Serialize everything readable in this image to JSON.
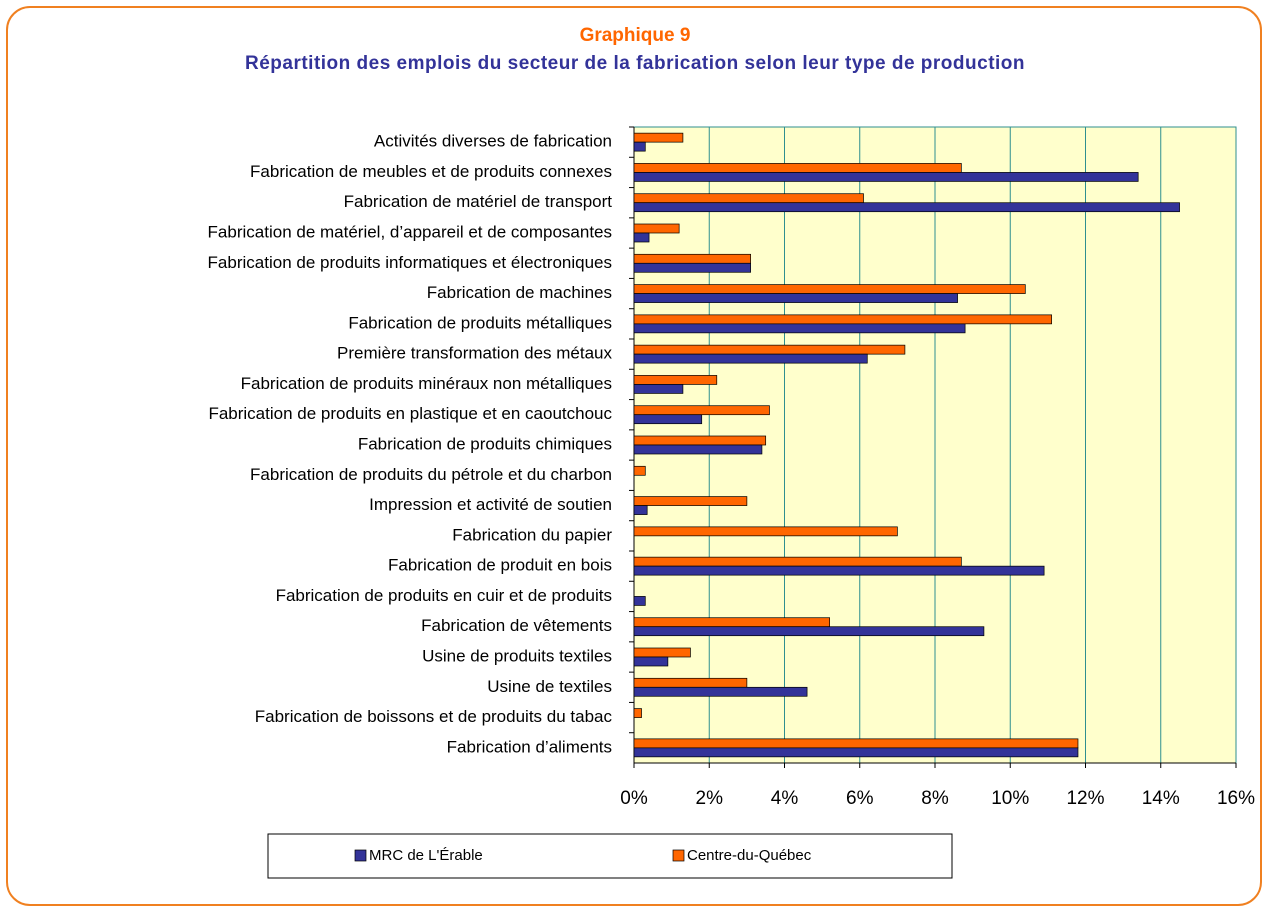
{
  "chart_data": {
    "type": "hbar",
    "title": "Graphique 9",
    "subtitle": "Répartition des emplois du secteur de la fabrication selon leur type de production",
    "categories": [
      "Activités diverses de fabrication",
      "Fabrication de meubles et de produits connexes",
      "Fabrication de matériel de transport",
      "Fabrication de matériel, d’appareil et de composantes",
      "Fabrication de produits informatiques et électroniques",
      "Fabrication de machines",
      "Fabrication de produits métalliques",
      "Première transformation des métaux",
      "Fabrication de produits minéraux non métalliques",
      "Fabrication de produits en plastique et en caoutchouc",
      "Fabrication de produits chimiques",
      "Fabrication de produits du pétrole et du charbon",
      "Impression et activité de soutien",
      "Fabrication du papier",
      "Fabrication de produit en bois",
      "Fabrication de produits en cuir et de produits",
      "Fabrication de vêtements",
      "Usine de produits textiles",
      "Usine de textiles",
      "Fabrication de boissons et de produits du tabac",
      "Fabrication d’aliments"
    ],
    "series": [
      {
        "name": "MRC de L'Érable",
        "color": "#333399",
        "values": [
          0.3,
          13.4,
          14.5,
          0.4,
          3.1,
          8.6,
          8.8,
          6.2,
          1.3,
          1.8,
          3.4,
          0,
          0.35,
          0,
          10.9,
          0.3,
          9.3,
          0.9,
          4.6,
          0,
          11.8
        ]
      },
      {
        "name": "Centre-du-Québec",
        "color": "#ff6600",
        "values": [
          1.3,
          8.7,
          6.1,
          1.2,
          3.1,
          10.4,
          11.1,
          7.2,
          2.2,
          3.6,
          3.5,
          0.3,
          3.0,
          7.0,
          8.7,
          0,
          5.2,
          1.5,
          3.0,
          0.2,
          11.8
        ]
      }
    ],
    "xlim": [
      0,
      16
    ],
    "xticks": [
      {
        "value": 0,
        "label": "0%"
      },
      {
        "value": 2,
        "label": "2%"
      },
      {
        "value": 4,
        "label": "4%"
      },
      {
        "value": 6,
        "label": "6%"
      },
      {
        "value": 8,
        "label": "8%"
      },
      {
        "value": 10,
        "label": "10%"
      },
      {
        "value": 12,
        "label": "12%"
      },
      {
        "value": 14,
        "label": "14%"
      },
      {
        "value": 16,
        "label": "16%"
      }
    ],
    "grid": true,
    "legend": "bottom"
  }
}
